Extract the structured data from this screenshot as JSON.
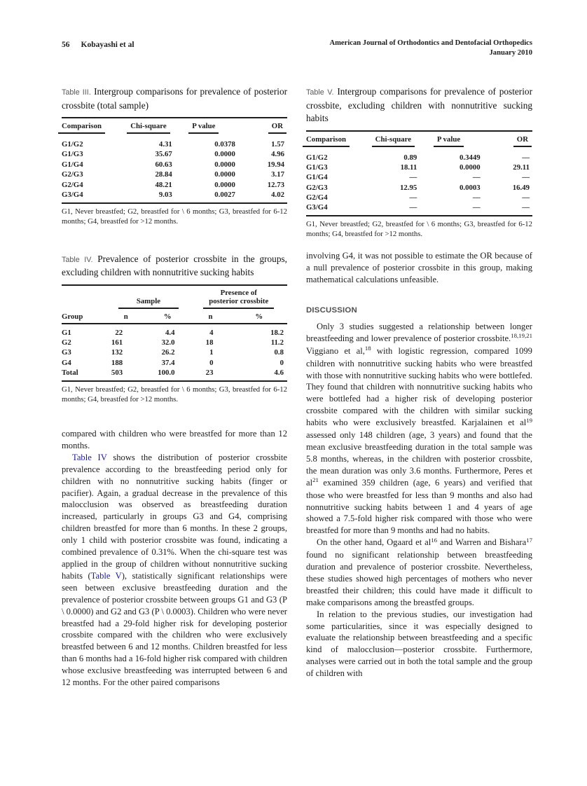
{
  "header": {
    "page_number": "56",
    "authors": "Kobayashi et al",
    "journal_name": "American Journal of Orthodontics and Dentofacial Orthopedics",
    "issue_date": "January 2010"
  },
  "colors": {
    "link_blue": "#1b1b9e",
    "caption_label_gray": "#595959"
  },
  "tables": {
    "table3": {
      "label": "Table III.",
      "caption": "Intergroup comparisons for prevalence of posterior crossbite (total sample)",
      "columns": [
        "Comparison",
        "Chi-square",
        "P value",
        "OR"
      ],
      "rows": [
        [
          "G1/G2",
          "4.31",
          "0.0378",
          "1.57"
        ],
        [
          "G1/G3",
          "35.67",
          "0.0000",
          "4.96"
        ],
        [
          "G1/G4",
          "60.63",
          "0.0000",
          "19.94"
        ],
        [
          "G2/G3",
          "28.84",
          "0.0000",
          "3.17"
        ],
        [
          "G2/G4",
          "48.21",
          "0.0000",
          "12.73"
        ],
        [
          "G3/G4",
          "9.03",
          "0.0027",
          "4.02"
        ]
      ],
      "footnote": "G1, Never breastfed; G2, breastfed for \\ 6 months; G3, breastfed for 6-12 months; G4, breastfed for >12 months."
    },
    "table4": {
      "label": "Table IV.",
      "caption": "Prevalence of posterior crossbite in the groups, excluding children with nonnutritive sucking habits",
      "spanners": {
        "sample": "Sample",
        "presence_line1": "Presence of",
        "presence_line2": "posterior crossbite"
      },
      "columns": [
        "Group",
        "n",
        "%",
        "n",
        "%"
      ],
      "rows": [
        [
          "G1",
          "22",
          "4.4",
          "4",
          "18.2"
        ],
        [
          "G2",
          "161",
          "32.0",
          "18",
          "11.2"
        ],
        [
          "G3",
          "132",
          "26.2",
          "1",
          "0.8"
        ],
        [
          "G4",
          "188",
          "37.4",
          "0",
          "0"
        ],
        [
          "Total",
          "503",
          "100.0",
          "23",
          "4.6"
        ]
      ],
      "footnote": "G1, Never breastfed; G2, breastfed for \\ 6 months; G3, breastfed for 6-12 months; G4, breastfed for >12 months."
    },
    "table5": {
      "label": "Table V.",
      "caption": "Intergroup comparisons for prevalence of posterior crossbite, excluding children with nonnutritive sucking habits",
      "columns": [
        "Comparison",
        "Chi-square",
        "P value",
        "OR"
      ],
      "rows": [
        [
          "G1/G2",
          "0.89",
          "0.3449",
          "—"
        ],
        [
          "G1/G3",
          "18.11",
          "0.0000",
          "29.11"
        ],
        [
          "G1/G4",
          "—",
          "—",
          "—"
        ],
        [
          "G2/G3",
          "12.95",
          "0.0003",
          "16.49"
        ],
        [
          "G2/G4",
          "—",
          "—",
          "—"
        ],
        [
          "G3/G4",
          "—",
          "—",
          "—"
        ]
      ],
      "footnote": "G1, Never breastfed; G2, breastfed for \\ 6 months; G3, breastfed for 6-12 months; G4, breastfed for >12 months."
    }
  },
  "body": {
    "left": {
      "p1": "compared with children who were breastfed for more than 12 months.",
      "p2": {
        "link1": "Table IV",
        "seg1": " shows the distribution of posterior crossbite prevalence according to the breastfeeding period only for children with no nonnutritive sucking habits (finger or pacifier). Again, a gradual decrease in the prevalence of this malocclusion was observed as breastfeeding duration increased, particularly in groups G3 and G4, comprising children breastfed for more than 6 months. In these 2 groups, only 1 child with posterior crossbite was found, indicating a combined prevalence of 0.31%. When the chi-square test was applied in the group of children without nonnutritive sucking habits (",
        "link2": "Table V",
        "seg2": "), statistically significant relationships were seen between exclusive breastfeeding duration and the prevalence of posterior crossbite between groups G1 and G3 (P \\ 0.0000) and G2 and G3 (P \\ 0.0003). Children who were never breastfed had a 29-fold higher risk for developing posterior crossbite compared with the children who were exclusively breastfed between 6 and 12 months. Children breastfed for less than 6 months had a 16-fold higher risk compared with children whose exclusive breastfeeding was interrupted between 6 and 12 months. For the other paired comparisons"
      }
    },
    "right": {
      "p1": "involving G4, it was not possible to estimate the OR because of a null prevalence of posterior crossbite in this group, making mathematical calculations unfeasible.",
      "discussion_heading": "DISCUSSION",
      "p2": {
        "seg1": "Only 3 studies suggested a relationship between longer breastfeeding and lower prevalence of posterior crossbite.",
        "sup1": "18,19,21",
        "seg2": " Viggiano et al,",
        "sup2": "18",
        "seg3": " with logistic regression, compared 1099 children with nonnutritive sucking habits who were breastfed with those with nonnutritive sucking habits who were bottlefed. They found that children with nonnutritive sucking habits who were bottlefed had a higher risk of developing posterior crossbite compared with the children with similar sucking habits who were exclusively breastfed. Karjalainen et al",
        "sup3": "19",
        "seg4": " assessed only 148 children (age, 3 years) and found that the mean exclusive breastfeeding duration in the total sample was 5.8 months, whereas, in the children with posterior crossbite, the mean duration was only 3.6 months. Furthermore, Peres et al",
        "sup4": "21",
        "seg5": " examined 359 children (age, 6 years) and verified that those who were breastfed for less than 9 months and also had nonnutritive sucking habits between 1 and 4 years of age showed a 7.5-fold higher risk compared with those who were breastfed for more than 9 months and had no habits."
      },
      "p3": {
        "seg1": "On the other hand, Ogaard et al",
        "sup1": "16",
        "seg2": " and Warren and Bishara",
        "sup2": "17",
        "seg3": " found no significant relationship between breastfeeding duration and prevalence of posterior crossbite. Nevertheless, these studies showed high percentages of mothers who never breastfed their children; this could have made it difficult to make comparisons among the breastfed groups."
      },
      "p4": "In relation to the previous studies, our investigation had some particularities, since it was especially designed to evaluate the relationship between breastfeeding and a specific kind of malocclusion—posterior crossbite. Furthermore, analyses were carried out in both the total sample and the group of children with"
    }
  }
}
